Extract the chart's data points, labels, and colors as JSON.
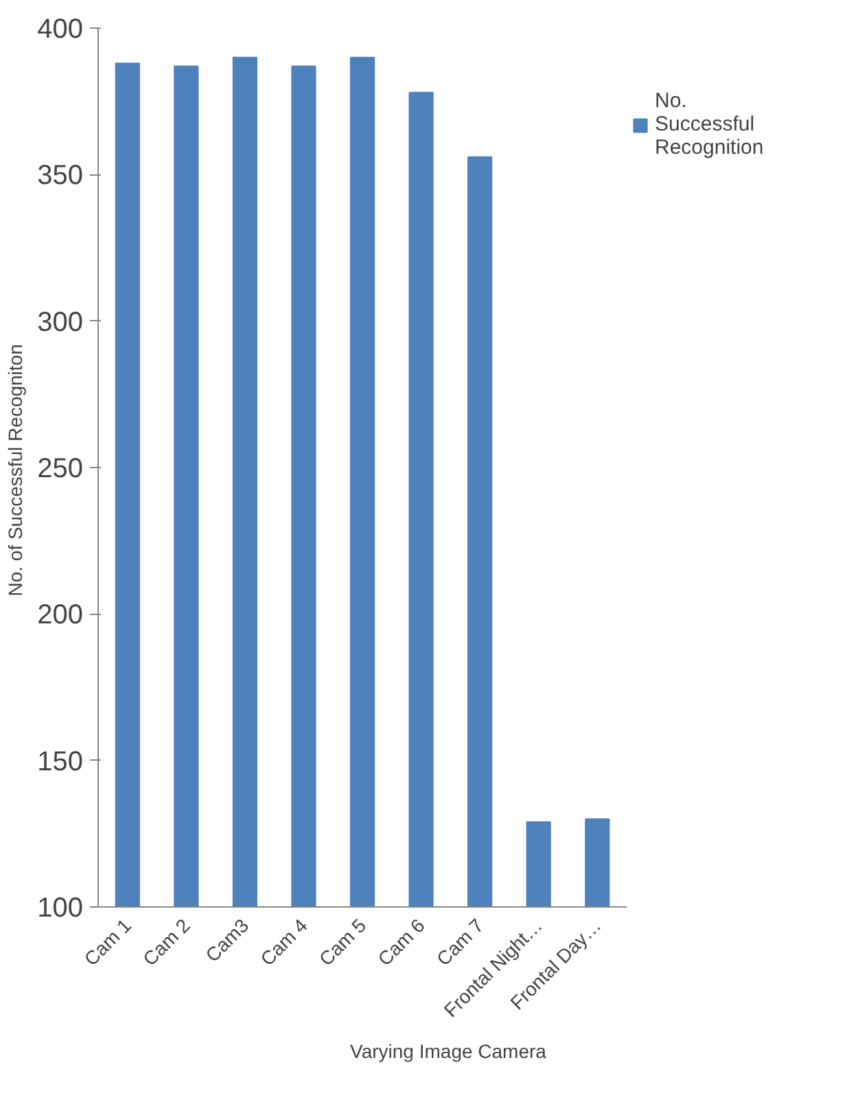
{
  "chart_data": {
    "type": "bar",
    "xlabel": "Varying Image Camera",
    "ylabel": "No. of Successful  Recogniton",
    "categories": [
      "Cam 1",
      "Cam 2",
      "Cam3",
      "Cam 4",
      "Cam 5",
      "Cam 6",
      "Cam 7",
      "Frontal Night…",
      "Frontal Day…"
    ],
    "series": [
      {
        "name": "No. Successful Recognition",
        "color": "#4f81bd",
        "values": [
          388,
          387,
          390,
          387,
          390,
          378,
          356,
          129,
          130
        ]
      }
    ],
    "ylim": [
      100,
      400
    ],
    "yticks": [
      100,
      150,
      200,
      250,
      300,
      350,
      400
    ],
    "grid": false,
    "legend": "right"
  }
}
